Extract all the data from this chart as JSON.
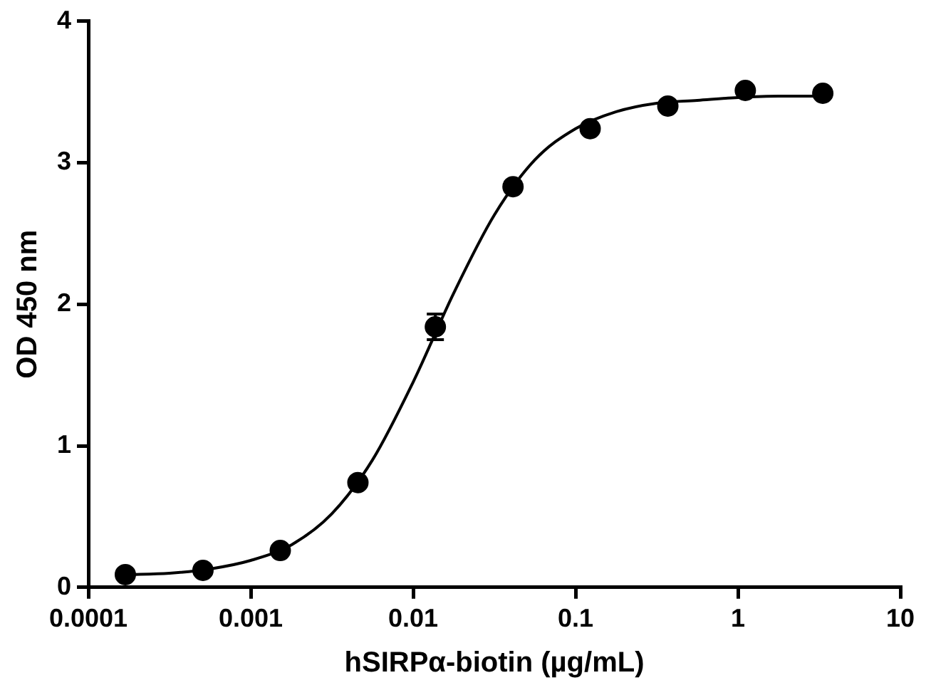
{
  "chart_data": {
    "type": "scatter",
    "xlabel": "hSIRPα-biotin (µg/mL)",
    "ylabel": "OD 450 nm",
    "log": "x",
    "grid": false,
    "xlim": [
      0.0001,
      10
    ],
    "xticks": [
      0.0001,
      0.001,
      0.01,
      0.1,
      1,
      10
    ],
    "ylim": [
      0,
      4
    ],
    "yticks": [
      0,
      1,
      2,
      3,
      4
    ],
    "series": [
      {
        "color": "#000000",
        "marker": "circle",
        "x": [
          0.000169,
          0.000508,
          0.00152,
          0.00457,
          0.0137,
          0.0412,
          0.123,
          0.37,
          1.11,
          3.33
        ],
        "values": [
          0.09,
          0.12,
          0.26,
          0.74,
          1.84,
          2.83,
          3.24,
          3.4,
          3.51,
          3.49
        ],
        "errors": [
          null,
          null,
          null,
          null,
          0.09,
          null,
          null,
          null,
          null,
          null
        ]
      },
      {
        "type": "line",
        "color": "#000000",
        "marker": "none",
        "line_style": "solid",
        "x": [
          0.00017,
          0.000316,
          0.000562,
          0.001,
          0.00178,
          0.00316,
          0.00562,
          0.01,
          0.0178,
          0.0316,
          0.0562,
          0.1,
          0.178,
          0.316,
          0.562,
          1,
          1.78,
          3.33
        ],
        "values": [
          0.09,
          0.1,
          0.13,
          0.19,
          0.3,
          0.52,
          0.9,
          1.45,
          2.08,
          2.63,
          3.02,
          3.24,
          3.36,
          3.42,
          3.44,
          3.46,
          3.47,
          3.47
        ]
      }
    ]
  }
}
